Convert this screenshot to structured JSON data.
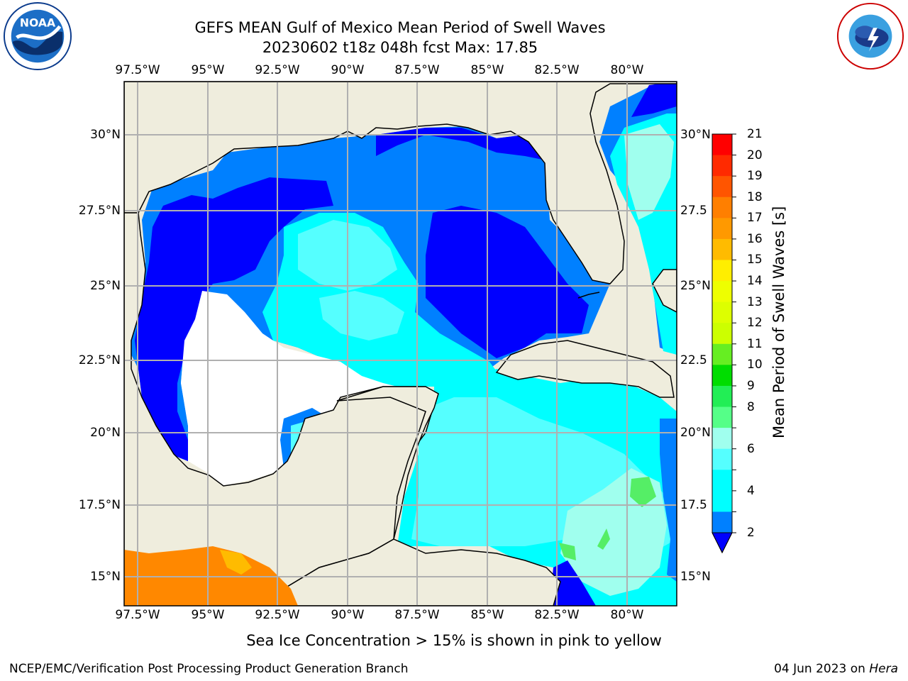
{
  "title": {
    "line1": "GEFS MEAN Gulf of Mexico Mean Period of Swell Waves",
    "line2": "20230602 t18z 048h fcst   Max: 17.85"
  },
  "map": {
    "lon_ticks": [
      "97.5°W",
      "95°W",
      "92.5°W",
      "90°W",
      "87.5°W",
      "85°W",
      "82.5°W",
      "80°W"
    ],
    "lat_ticks_left": [
      "30°N",
      "27.5°N",
      "25°N",
      "22.5°N",
      "20°N",
      "17.5°N",
      "15°N"
    ],
    "lat_ticks_right": [
      "30°N",
      "27.5",
      "25°N",
      "22.5",
      "20°N",
      "17.5",
      "15°N"
    ],
    "colors": {
      "land": "#efeddd",
      "ocean_default": "#ffffff",
      "grid": "#b0b0b0"
    }
  },
  "colorbar": {
    "label": "Mean Period of Swell Waves [s]",
    "ticks": [
      "21",
      "20",
      "19",
      "18",
      "17",
      "16",
      "15",
      "14",
      "13",
      "12",
      "11",
      "10",
      "9",
      "8",
      "7",
      "6",
      "5",
      "4",
      "3",
      "2"
    ],
    "tick_labels_shown": [
      "21",
      "20",
      "19",
      "18",
      "17",
      "16",
      "15",
      "14",
      "13",
      "12",
      "11",
      "10",
      "9",
      "8",
      "6",
      "4",
      "2"
    ],
    "colors": [
      "#ff0000",
      "#ff2a00",
      "#ff5500",
      "#ff7f00",
      "#ff9900",
      "#ffbb00",
      "#ffee00",
      "#eeff00",
      "#ddff00",
      "#ccff00",
      "#66ee22",
      "#00dd00",
      "#22ee55",
      "#55ff88",
      "#a0ffee",
      "#55ffff",
      "#00ffff",
      "#00ffff",
      "#0080ff",
      "#0000ff"
    ]
  },
  "subtitle": "Sea Ice Concentration > 15% is shown in pink to yellow",
  "footer": {
    "left": "NCEP/EMC/Verification Post Processing Product Generation Branch",
    "right_date": "04 Jun 2023 on ",
    "right_host": "Hera"
  },
  "logos": {
    "left": "noaa-logo",
    "right": "nws-logo"
  }
}
